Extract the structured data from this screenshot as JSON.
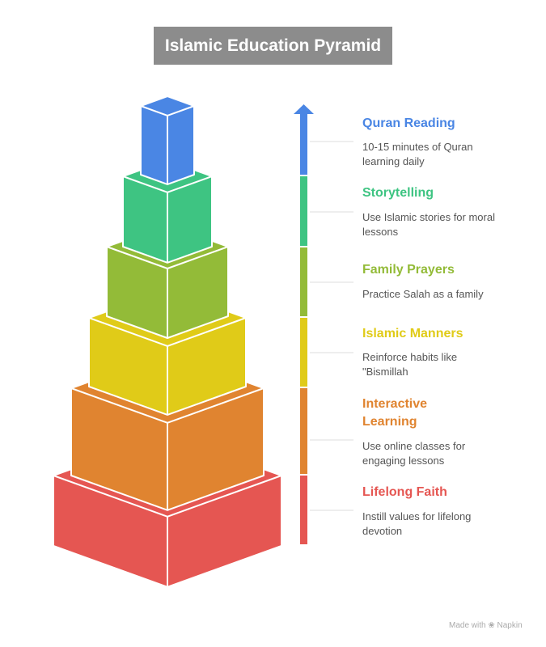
{
  "title": "Islamic Education Pyramid",
  "levels": [
    {
      "title": "Quran Reading",
      "description": "10-15 minutes of Quran learning daily",
      "color": "#4a86e4"
    },
    {
      "title": "Storytelling",
      "description": "Use Islamic stories for moral lessons",
      "color": "#3ec482"
    },
    {
      "title": "Family Prayers",
      "description": "Practice Salah as a family",
      "color": "#93bb38"
    },
    {
      "title": "Islamic Manners",
      "description": "Reinforce habits like \"Bismillah",
      "color": "#e0cb18"
    },
    {
      "title": "Interactive Learning",
      "description": "Use online classes for engaging lessons",
      "color": "#e08430"
    },
    {
      "title": "Lifelong Faith",
      "description": "Instill values for lifelong devotion",
      "color": "#e55652"
    }
  ],
  "footer": "Made with ❀ Napkin"
}
